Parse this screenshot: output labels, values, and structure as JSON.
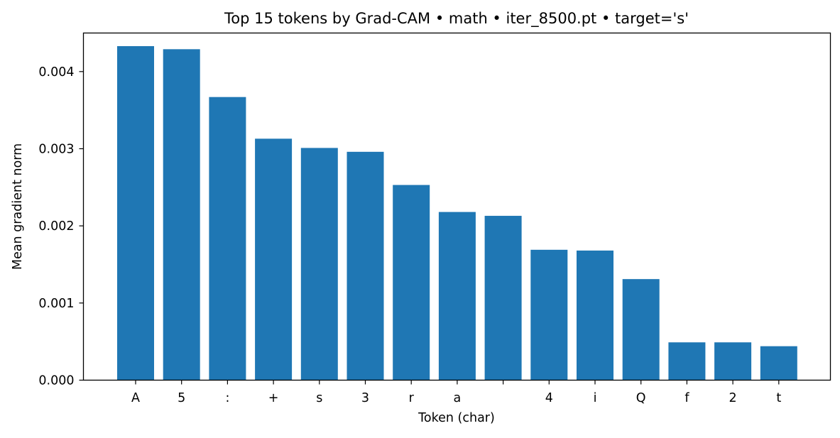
{
  "chart_data": {
    "type": "bar",
    "title": "Top 15 tokens by Grad-CAM • math • iter_8500.pt • target='s'",
    "xlabel": "Token (char)",
    "ylabel": "Mean gradient norm",
    "categories": [
      "A",
      "5",
      ":",
      "+",
      "s",
      "3",
      "r",
      "a",
      " ",
      "4",
      "i",
      "Q",
      "f",
      "2",
      "t"
    ],
    "values": [
      0.00433,
      0.00429,
      0.00367,
      0.00313,
      0.00301,
      0.00296,
      0.00253,
      0.00218,
      0.00213,
      0.00169,
      0.00168,
      0.00131,
      0.00049,
      0.00049,
      0.00044
    ],
    "ylim": [
      0,
      0.0045
    ],
    "yticks": [
      0,
      0.001,
      0.002,
      0.003,
      0.004
    ],
    "ytick_labels": [
      "0.000",
      "0.001",
      "0.002",
      "0.003",
      "0.004"
    ],
    "bar_color": "#1f77b4",
    "grid": false,
    "legend": false
  }
}
